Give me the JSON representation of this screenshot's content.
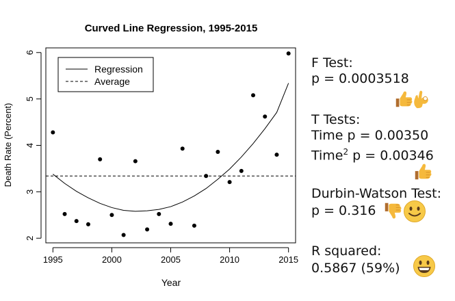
{
  "chart_data": {
    "type": "scatter",
    "title": "Curved Line Regression, 1995-2015",
    "xlabel": "Year",
    "ylabel": "Death Rate (Percent)",
    "xlim": [
      1994.4,
      2015.6
    ],
    "ylim": [
      1.9,
      6.1
    ],
    "xticks": [
      1995,
      2000,
      2005,
      2010,
      2015
    ],
    "yticks": [
      2,
      3,
      4,
      5,
      6
    ],
    "grid": false,
    "legend": {
      "placement": "top-left",
      "entries": [
        {
          "label": "Regression",
          "style": "solid"
        },
        {
          "label": "Average",
          "style": "dashed"
        }
      ]
    },
    "points": {
      "x": [
        1995,
        1996,
        1997,
        1998,
        1999,
        2000,
        2001,
        2002,
        2003,
        2004,
        2005,
        2006,
        2007,
        2008,
        2009,
        2010,
        2011,
        2012,
        2013,
        2014,
        2015
      ],
      "y": [
        4.28,
        2.52,
        2.37,
        2.3,
        3.7,
        2.5,
        2.07,
        3.66,
        2.19,
        2.52,
        2.31,
        3.93,
        2.27,
        3.34,
        3.86,
        3.21,
        3.45,
        5.08,
        4.62,
        3.8,
        5.98
      ]
    },
    "regression": {
      "x": [
        1995,
        1996,
        1997,
        1998,
        1999,
        2000,
        2001,
        2002,
        2003,
        2004,
        2005,
        2006,
        2007,
        2008,
        2009,
        2010,
        2011,
        2012,
        2013,
        2014,
        2015
      ],
      "y": [
        3.38,
        3.18,
        3.01,
        2.87,
        2.75,
        2.66,
        2.6,
        2.58,
        2.59,
        2.62,
        2.68,
        2.78,
        2.91,
        3.07,
        3.27,
        3.49,
        3.75,
        4.04,
        4.36,
        4.71,
        5.34
      ]
    },
    "average": 3.34,
    "colors": {
      "points": "#000000",
      "lines": "#000000"
    }
  },
  "stats": {
    "f_test_title": "F Test:",
    "f_test_value": "p = 0.0003518",
    "f_test_emojis": [
      "thumbs-up",
      "ok-hand"
    ],
    "t_tests_title": "T Tests:",
    "t_time": "Time p = 0.00350",
    "t_time2_label": "Time",
    "t_time2_sup": "2",
    "t_time2_value": " p = 0.00346",
    "t_tests_emojis": [
      "thumbs-up"
    ],
    "dw_title": "Durbin-Watson Test:",
    "dw_value": "p = 0.316",
    "dw_emojis": [
      "thumbs-down",
      "slightly-smiling-face"
    ],
    "r2_title": "R squared:",
    "r2_value": "0.5867 (59%)",
    "r2_emojis": [
      "grinning-face"
    ]
  }
}
